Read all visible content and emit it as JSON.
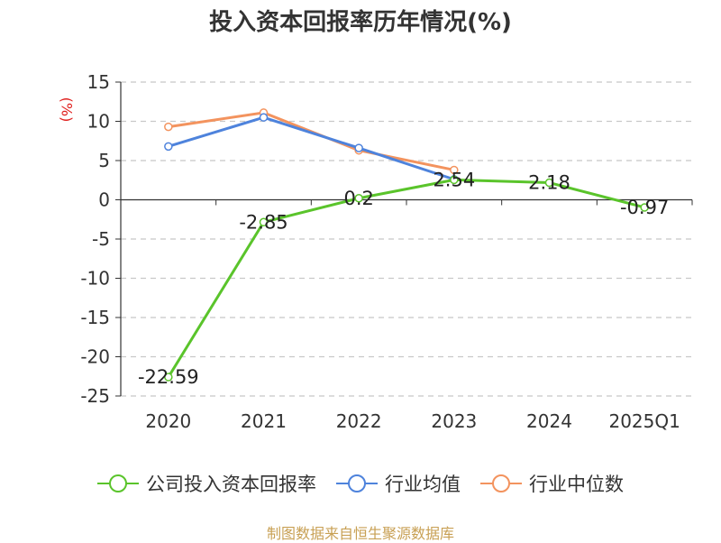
{
  "chart_data": {
    "type": "line",
    "title": "投入资本回报率历年情况(%)",
    "ylabel": "(%)",
    "categories": [
      "2020",
      "2021",
      "2022",
      "2023",
      "2024",
      "2025Q1"
    ],
    "ylim": [
      -25,
      15
    ],
    "yticks": [
      15,
      10,
      5,
      0,
      -5,
      -10,
      -15,
      -20,
      -25
    ],
    "grid": true,
    "legend_position": "bottom",
    "series": [
      {
        "name": "公司投入资本回报率",
        "color": "#5ac42b",
        "values": [
          -22.59,
          -2.85,
          0.2,
          2.54,
          2.18,
          -0.97
        ],
        "labels": [
          "-22.59",
          "-2.85",
          "0.2",
          "2.54",
          "2.18",
          "-0.97"
        ]
      },
      {
        "name": "行业均值",
        "color": "#4e83dc",
        "values": [
          6.8,
          10.5,
          6.6,
          2.6,
          null,
          null
        ]
      },
      {
        "name": "行业中位数",
        "color": "#f3935e",
        "values": [
          9.3,
          11.1,
          6.3,
          3.8,
          null,
          null
        ]
      }
    ]
  },
  "legend": {
    "items": [
      {
        "label": "公司投入资本回报率",
        "color": "#5ac42b"
      },
      {
        "label": "行业均值",
        "color": "#4e83dc"
      },
      {
        "label": "行业中位数",
        "color": "#f3935e"
      }
    ]
  },
  "source": "制图数据来自恒生聚源数据库"
}
